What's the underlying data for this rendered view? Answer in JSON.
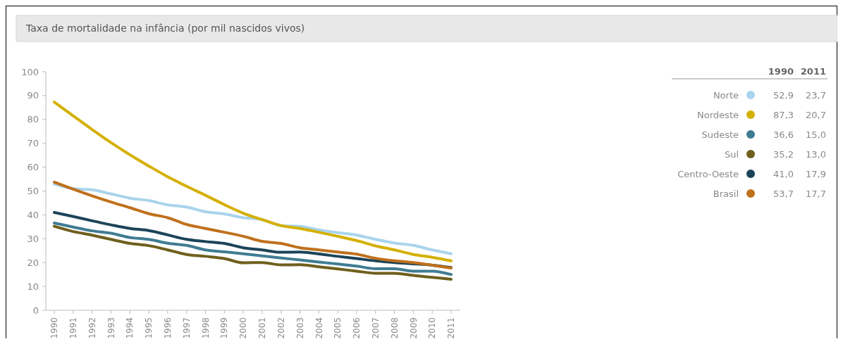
{
  "chart_data": {
    "type": "line",
    "title": "Taxa de mortalidade na infância (por mil nascidos vivos)",
    "categories": [
      "1990",
      "1991",
      "1992",
      "1993",
      "1994",
      "1995",
      "1996",
      "1997",
      "1998",
      "1999",
      "2000",
      "2001",
      "2002",
      "2003",
      "2004",
      "2005",
      "2006",
      "2007",
      "2008",
      "2009",
      "2010",
      "2011"
    ],
    "annotations": [
      "52,9",
      "23,7",
      "87,3",
      "20,7",
      "36,6",
      "15,0",
      "35,2",
      "13,0",
      "41,0",
      "17,9",
      "53,7",
      "17,7"
    ],
    "ylim": [
      0,
      100
    ],
    "yticks": [
      0,
      10,
      20,
      30,
      40,
      50,
      60,
      70,
      80,
      90,
      100
    ],
    "grid": false,
    "legend": "top right",
    "line_style": "solid",
    "marker": "none",
    "series": [
      {
        "name": "Norte",
        "color": "#a9d4ec",
        "values": [
          52.9,
          51,
          50.5,
          48.8,
          47,
          46,
          44.2,
          43.3,
          41.3,
          40.4,
          38.8,
          38,
          35.5,
          35.2,
          33.7,
          32.5,
          31.5,
          29.7,
          28.2,
          27.2,
          25.3,
          23.7
        ]
      },
      {
        "name": "Nordeste",
        "color": "#d4b000",
        "values": [
          87.3,
          81.5,
          75.8,
          70.3,
          65.2,
          60.5,
          56,
          52,
          48.2,
          44.3,
          40.7,
          38,
          35.5,
          34.3,
          32.7,
          31,
          29.2,
          27,
          25.3,
          23.4,
          22.2,
          20.7
        ]
      },
      {
        "name": "Sudeste",
        "color": "#3f7c92",
        "values": [
          36.6,
          34.9,
          33.3,
          32.3,
          30.5,
          29.7,
          28.1,
          27.2,
          25.3,
          24.5,
          23.7,
          22.8,
          21.9,
          21.1,
          20.2,
          19.4,
          18.5,
          17.4,
          17.4,
          16.4,
          16.4,
          15.0
        ]
      },
      {
        "name": "Sul",
        "color": "#6e5f1c",
        "values": [
          35.2,
          33,
          31.5,
          29.7,
          28,
          27.1,
          25.3,
          23.4,
          22.6,
          21.7,
          19.9,
          20,
          19,
          19.1,
          18.2,
          17.3,
          16.4,
          15.5,
          15.5,
          14.6,
          13.8,
          13.0
        ]
      },
      {
        "name": "Centro-Oeste",
        "color": "#1c4459",
        "values": [
          41.0,
          39.3,
          37.5,
          35.8,
          34.3,
          33.4,
          31.6,
          29.7,
          28.8,
          28,
          26.2,
          25.3,
          24.3,
          24.4,
          23.6,
          22.6,
          21.7,
          20.7,
          20,
          19.5,
          18.9,
          17.9
        ]
      },
      {
        "name": "Brasil",
        "color": "#c0701c",
        "values": [
          53.7,
          50.8,
          48,
          45.4,
          43,
          40.5,
          38.8,
          36,
          34.3,
          32.7,
          31,
          28.9,
          28,
          26.2,
          25.3,
          24.4,
          23.5,
          21.8,
          20.7,
          20,
          18.9,
          17.7
        ]
      }
    ]
  }
}
